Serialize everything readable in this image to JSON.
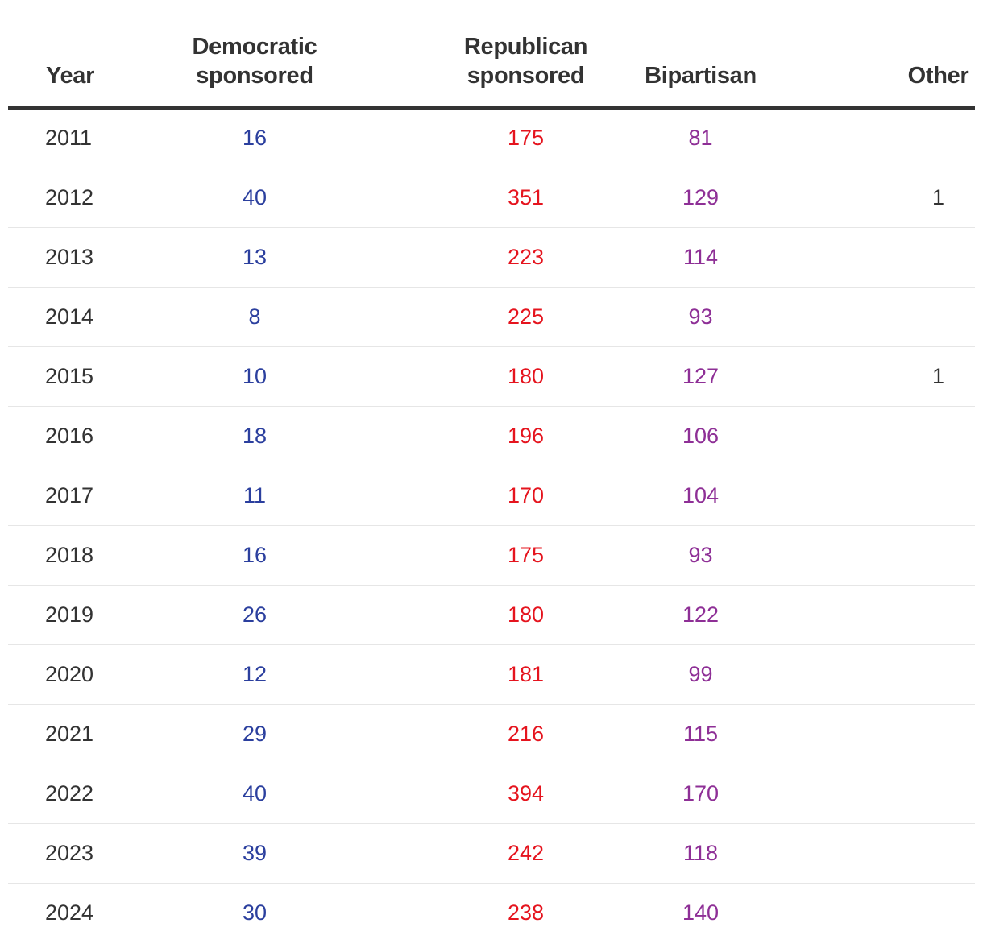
{
  "colors": {
    "democratic": "#2b3f9e",
    "republican": "#e5141e",
    "bipartisan": "#8e2f96",
    "other": "#333333"
  },
  "chart_data": {
    "type": "table",
    "columns": [
      {
        "key": "year",
        "lines": [
          "Year"
        ]
      },
      {
        "key": "dem",
        "lines": [
          "Democratic",
          "sponsored"
        ]
      },
      {
        "key": "rep",
        "lines": [
          "Republican",
          "sponsored"
        ]
      },
      {
        "key": "bi",
        "lines": [
          "Bipartisan"
        ]
      },
      {
        "key": "oth",
        "lines": [
          "Other"
        ]
      }
    ],
    "rows": [
      {
        "year": "2011",
        "dem": "16",
        "rep": "175",
        "bi": "81",
        "oth": ""
      },
      {
        "year": "2012",
        "dem": "40",
        "rep": "351",
        "bi": "129",
        "oth": "1"
      },
      {
        "year": "2013",
        "dem": "13",
        "rep": "223",
        "bi": "114",
        "oth": ""
      },
      {
        "year": "2014",
        "dem": "8",
        "rep": "225",
        "bi": "93",
        "oth": ""
      },
      {
        "year": "2015",
        "dem": "10",
        "rep": "180",
        "bi": "127",
        "oth": "1"
      },
      {
        "year": "2016",
        "dem": "18",
        "rep": "196",
        "bi": "106",
        "oth": ""
      },
      {
        "year": "2017",
        "dem": "11",
        "rep": "170",
        "bi": "104",
        "oth": ""
      },
      {
        "year": "2018",
        "dem": "16",
        "rep": "175",
        "bi": "93",
        "oth": ""
      },
      {
        "year": "2019",
        "dem": "26",
        "rep": "180",
        "bi": "122",
        "oth": ""
      },
      {
        "year": "2020",
        "dem": "12",
        "rep": "181",
        "bi": "99",
        "oth": ""
      },
      {
        "year": "2021",
        "dem": "29",
        "rep": "216",
        "bi": "115",
        "oth": ""
      },
      {
        "year": "2022",
        "dem": "40",
        "rep": "394",
        "bi": "170",
        "oth": ""
      },
      {
        "year": "2023",
        "dem": "39",
        "rep": "242",
        "bi": "118",
        "oth": ""
      },
      {
        "year": "2024",
        "dem": "30",
        "rep": "238",
        "bi": "140",
        "oth": ""
      }
    ]
  }
}
